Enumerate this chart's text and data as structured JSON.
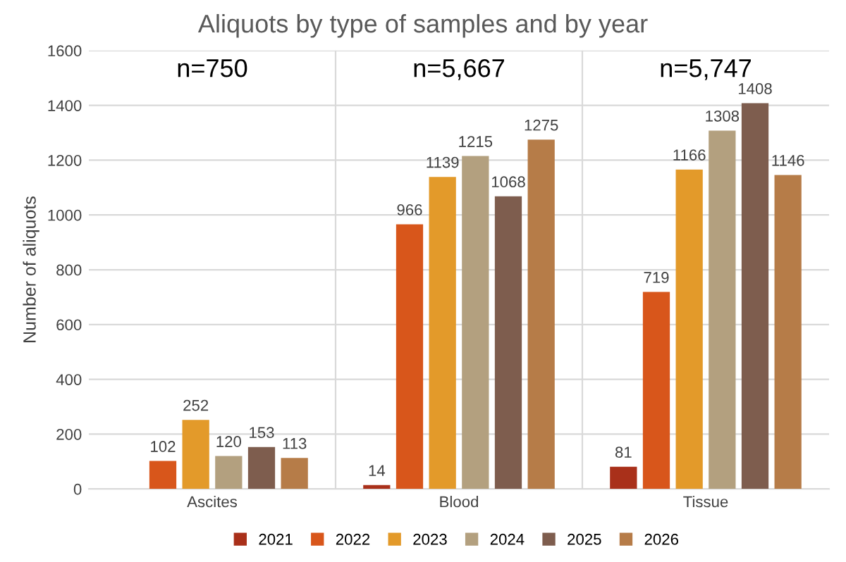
{
  "chart_data": {
    "type": "bar",
    "title": "Aliquots by type of samples and by year",
    "ylabel": "Number of aliquots",
    "categories": [
      "Ascites",
      "Blood",
      "Tissue"
    ],
    "series": [
      {
        "name": "2021",
        "color": "#a9301a",
        "values": [
          null,
          14,
          81
        ]
      },
      {
        "name": "2022",
        "color": "#d8561b",
        "values": [
          102,
          966,
          719
        ]
      },
      {
        "name": "2023",
        "color": "#e39a2a",
        "values": [
          252,
          1139,
          1166
        ]
      },
      {
        "name": "2024",
        "color": "#b3a07f",
        "values": [
          120,
          1215,
          1308
        ]
      },
      {
        "name": "2025",
        "color": "#7e5d4e",
        "values": [
          153,
          1068,
          1408
        ]
      },
      {
        "name": "2026",
        "color": "#b67c48",
        "values": [
          113,
          1275,
          1146
        ]
      }
    ],
    "ylim": [
      0,
      1600
    ],
    "yticks": [
      0,
      200,
      400,
      600,
      800,
      1000,
      1200,
      1400,
      1600
    ],
    "grid": true,
    "legend": "bottom",
    "data_labels": true,
    "annotations": [
      "n=750",
      "n=5,667",
      "n=5,747"
    ]
  }
}
